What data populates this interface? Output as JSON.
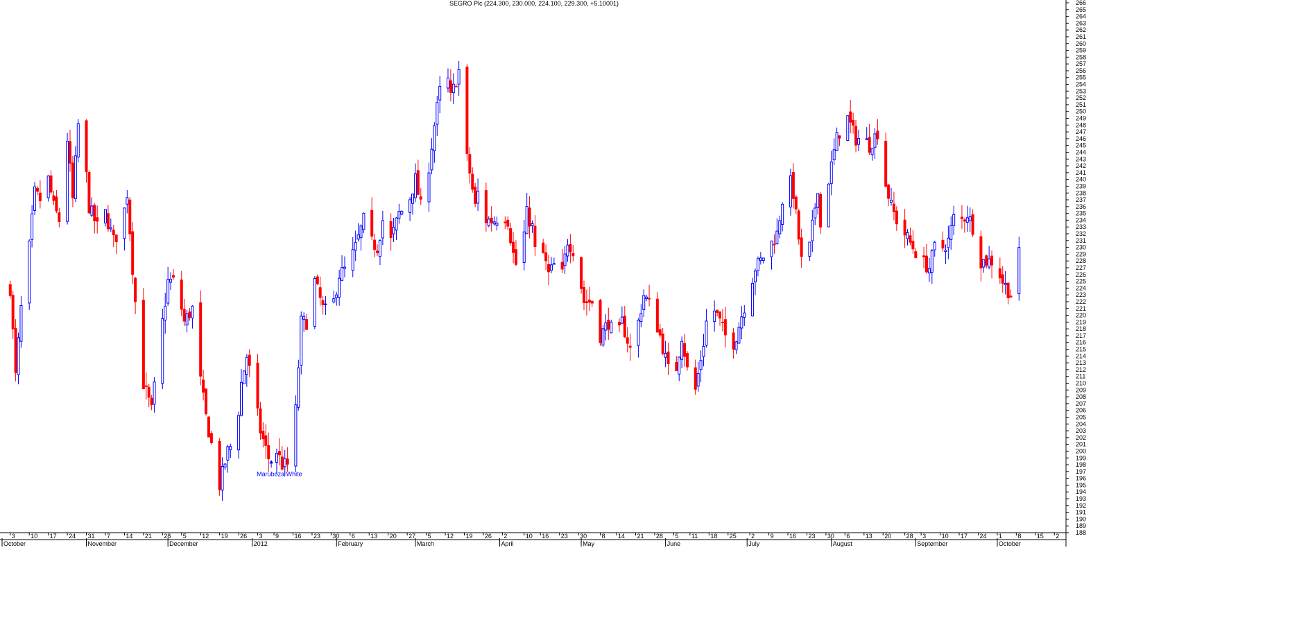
{
  "chart_data": {
    "type": "candlestick",
    "title": "SEGRO Plc (224.300, 230.000, 224.100, 229.300, +5.10001)",
    "ylim": [
      188,
      266
    ],
    "y_ticks": [
      188,
      189,
      190,
      191,
      192,
      193,
      194,
      195,
      196,
      197,
      198,
      199,
      200,
      201,
      202,
      203,
      204,
      205,
      206,
      207,
      208,
      209,
      210,
      211,
      212,
      213,
      214,
      215,
      216,
      217,
      218,
      219,
      220,
      221,
      222,
      223,
      224,
      225,
      226,
      227,
      228,
      229,
      230,
      231,
      232,
      233,
      234,
      235,
      236,
      237,
      238,
      239,
      240,
      241,
      242,
      243,
      244,
      245,
      246,
      247,
      248,
      249,
      250,
      251,
      252,
      253,
      254,
      255,
      256,
      257,
      258,
      259,
      260,
      261,
      262,
      263,
      264,
      265,
      266
    ],
    "x_ticks": [
      {
        "label": "3",
        "day": 3
      },
      {
        "label": "10",
        "day": 10
      },
      {
        "label": "17",
        "day": 17
      },
      {
        "label": "24",
        "day": 24
      },
      {
        "label": "31",
        "day": 31
      },
      {
        "label": "7",
        "day": 38
      },
      {
        "label": "14",
        "day": 45
      },
      {
        "label": "21",
        "day": 52
      },
      {
        "label": "28",
        "day": 59
      },
      {
        "label": "5",
        "day": 66
      },
      {
        "label": "12",
        "day": 73
      },
      {
        "label": "19",
        "day": 80
      },
      {
        "label": "26",
        "day": 87
      },
      {
        "label": "3",
        "day": 94
      },
      {
        "label": "9",
        "day": 100
      },
      {
        "label": "16",
        "day": 107
      },
      {
        "label": "23",
        "day": 114
      },
      {
        "label": "30",
        "day": 121
      },
      {
        "label": "6",
        "day": 128
      },
      {
        "label": "13",
        "day": 135
      },
      {
        "label": "20",
        "day": 142
      },
      {
        "label": "27",
        "day": 149
      },
      {
        "label": "5",
        "day": 156
      },
      {
        "label": "12",
        "day": 163
      },
      {
        "label": "19",
        "day": 170
      },
      {
        "label": "26",
        "day": 177
      },
      {
        "label": "2",
        "day": 184
      },
      {
        "label": "10",
        "day": 192
      },
      {
        "label": "16",
        "day": 198
      },
      {
        "label": "23",
        "day": 205
      },
      {
        "label": "30",
        "day": 212
      },
      {
        "label": "8",
        "day": 220
      },
      {
        "label": "14",
        "day": 226
      },
      {
        "label": "21",
        "day": 233
      },
      {
        "label": "28",
        "day": 240
      },
      {
        "label": "5",
        "day": 247
      },
      {
        "label": "11",
        "day": 253
      },
      {
        "label": "18",
        "day": 260
      },
      {
        "label": "25",
        "day": 267
      },
      {
        "label": "2",
        "day": 275
      },
      {
        "label": "9",
        "day": 282
      },
      {
        "label": "16",
        "day": 289
      },
      {
        "label": "23",
        "day": 296
      },
      {
        "label": "30",
        "day": 303
      },
      {
        "label": "6",
        "day": 310
      },
      {
        "label": "13",
        "day": 317
      },
      {
        "label": "20",
        "day": 324
      },
      {
        "label": "28",
        "day": 332
      },
      {
        "label": "3",
        "day": 338
      },
      {
        "label": "10",
        "day": 345
      },
      {
        "label": "17",
        "day": 352
      },
      {
        "label": "24",
        "day": 359
      },
      {
        "label": "1",
        "day": 366
      },
      {
        "label": "8",
        "day": 373
      },
      {
        "label": "15",
        "day": 380
      },
      {
        "label": "2",
        "day": 387
      }
    ],
    "months": [
      {
        "label": "October",
        "day": 0
      },
      {
        "label": "November",
        "day": 31
      },
      {
        "label": "December",
        "day": 61
      },
      {
        "label": "2012",
        "day": 92
      },
      {
        "label": "February",
        "day": 123
      },
      {
        "label": "March",
        "day": 152
      },
      {
        "label": "April",
        "day": 183
      },
      {
        "label": "May",
        "day": 213
      },
      {
        "label": "June",
        "day": 244
      },
      {
        "label": "July",
        "day": 274
      },
      {
        "label": "August",
        "day": 305
      },
      {
        "label": "September",
        "day": 336
      },
      {
        "label": "October",
        "day": 366
      }
    ],
    "xlim_days": [
      0,
      390
    ],
    "anchors": [
      [
        3,
        224
      ],
      [
        5,
        211
      ],
      [
        7,
        221
      ],
      [
        10,
        230
      ],
      [
        12,
        238
      ],
      [
        14,
        237
      ],
      [
        17,
        240
      ],
      [
        19,
        236
      ],
      [
        21,
        234
      ],
      [
        24,
        246
      ],
      [
        26,
        237
      ],
      [
        28,
        248
      ],
      [
        30,
        245
      ],
      [
        32,
        236
      ],
      [
        35,
        233
      ],
      [
        38,
        235
      ],
      [
        41,
        231
      ],
      [
        44,
        233
      ],
      [
        46,
        238
      ],
      [
        48,
        227
      ],
      [
        50,
        217
      ],
      [
        52,
        210
      ],
      [
        55,
        206
      ],
      [
        58,
        216
      ],
      [
        61,
        225
      ],
      [
        64,
        225
      ],
      [
        67,
        219
      ],
      [
        70,
        221
      ],
      [
        72,
        213
      ],
      [
        75,
        205
      ],
      [
        78,
        199
      ],
      [
        80,
        195
      ],
      [
        83,
        200
      ],
      [
        86,
        202
      ],
      [
        88,
        210
      ],
      [
        90,
        214
      ],
      [
        92,
        210
      ],
      [
        95,
        203
      ],
      [
        98,
        199
      ],
      [
        100,
        201
      ],
      [
        103,
        198
      ],
      [
        106,
        198
      ],
      [
        108,
        206
      ],
      [
        110,
        219
      ],
      [
        113,
        219
      ],
      [
        115,
        225
      ],
      [
        118,
        221
      ],
      [
        121,
        220
      ],
      [
        124,
        226
      ],
      [
        127,
        227
      ],
      [
        130,
        230
      ],
      [
        133,
        234
      ],
      [
        135,
        231
      ],
      [
        138,
        230
      ],
      [
        141,
        236
      ],
      [
        143,
        231
      ],
      [
        146,
        235
      ],
      [
        149,
        236
      ],
      [
        152,
        240
      ],
      [
        155,
        234
      ],
      [
        157,
        242
      ],
      [
        159,
        248
      ],
      [
        161,
        253
      ],
      [
        163,
        257
      ],
      [
        165,
        252
      ],
      [
        168,
        256
      ],
      [
        170,
        245
      ],
      [
        172,
        241
      ],
      [
        174,
        236
      ],
      [
        176,
        240
      ],
      [
        178,
        234
      ],
      [
        181,
        234
      ],
      [
        184,
        235
      ],
      [
        186,
        234
      ],
      [
        188,
        229
      ],
      [
        190,
        226
      ],
      [
        193,
        235
      ],
      [
        195,
        233
      ],
      [
        197,
        226
      ],
      [
        199,
        229
      ],
      [
        201,
        226
      ],
      [
        204,
        228
      ],
      [
        206,
        226
      ],
      [
        208,
        231
      ],
      [
        211,
        229
      ],
      [
        214,
        222
      ],
      [
        217,
        222
      ],
      [
        220,
        217
      ],
      [
        223,
        219
      ],
      [
        226,
        216
      ],
      [
        228,
        219
      ],
      [
        231,
        215
      ],
      [
        234,
        219
      ],
      [
        236,
        223
      ],
      [
        239,
        221
      ],
      [
        242,
        217
      ],
      [
        245,
        212
      ],
      [
        247,
        210
      ],
      [
        250,
        217
      ],
      [
        252,
        212
      ],
      [
        255,
        209
      ],
      [
        258,
        216
      ],
      [
        260,
        222
      ],
      [
        263,
        220
      ],
      [
        266,
        217
      ],
      [
        268,
        215
      ],
      [
        270,
        217
      ],
      [
        272,
        220
      ],
      [
        275,
        224
      ],
      [
        277,
        227
      ],
      [
        279,
        228
      ],
      [
        282,
        230
      ],
      [
        285,
        232
      ],
      [
        287,
        237
      ],
      [
        289,
        241
      ],
      [
        291,
        238
      ],
      [
        294,
        228
      ],
      [
        296,
        227
      ],
      [
        298,
        233
      ],
      [
        300,
        239
      ],
      [
        302,
        227
      ],
      [
        304,
        240
      ],
      [
        307,
        246
      ],
      [
        309,
        248
      ],
      [
        311,
        249
      ],
      [
        314,
        246
      ],
      [
        317,
        246
      ],
      [
        319,
        245
      ],
      [
        322,
        247
      ],
      [
        324,
        241
      ],
      [
        327,
        236
      ],
      [
        330,
        233
      ],
      [
        332,
        232
      ],
      [
        335,
        230
      ],
      [
        338,
        228
      ],
      [
        341,
        227
      ],
      [
        343,
        230
      ],
      [
        346,
        230
      ],
      [
        348,
        231
      ],
      [
        351,
        236
      ],
      [
        353,
        234
      ],
      [
        355,
        235
      ],
      [
        358,
        232
      ],
      [
        360,
        228
      ],
      [
        363,
        228
      ],
      [
        365,
        228
      ],
      [
        368,
        225
      ],
      [
        371,
        223
      ],
      [
        374,
        229
      ]
    ],
    "series": [
      {
        "name": "Maruboza White",
        "type": "annotation",
        "x_day": 99,
        "value": 199
      }
    ]
  }
}
